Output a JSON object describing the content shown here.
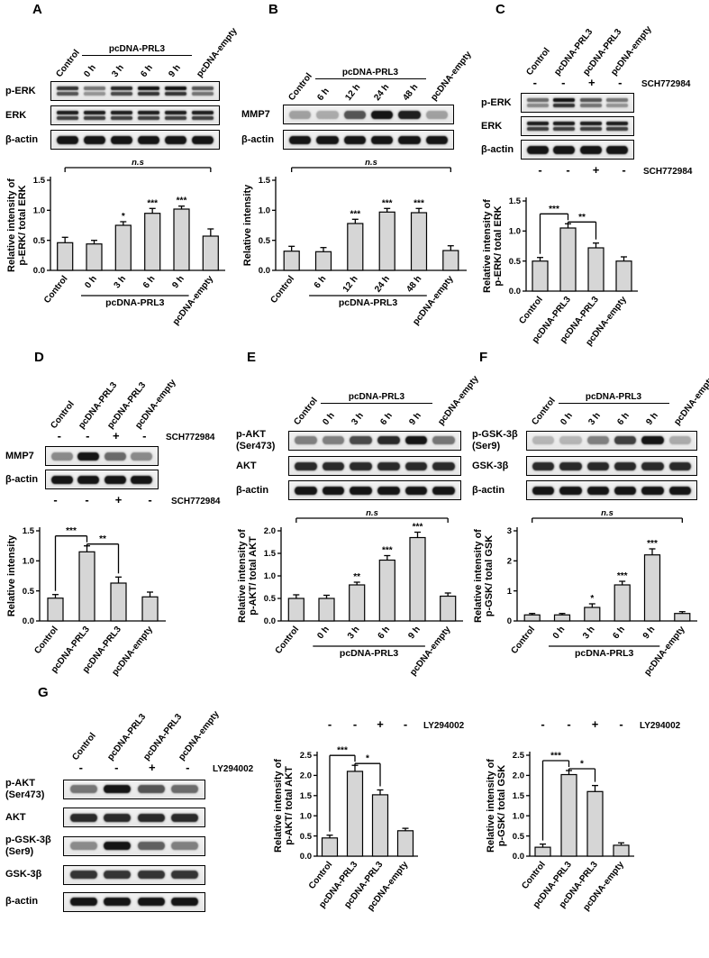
{
  "figure": {
    "background": "#ffffff",
    "text_color": "#000000",
    "bar_fill": "#d6d6d6",
    "bar_stroke": "#000000"
  },
  "panels": [
    {
      "label": "A",
      "blot": {
        "lanes": [
          "Control",
          "0 h",
          "3 h",
          "6 h",
          "9 h",
          "pcDNA-empty"
        ],
        "group": {
          "label": "pcDNA-PRL3",
          "from": 1,
          "to": 4
        },
        "treatment": null,
        "rows": [
          {
            "label_lines": [
              "p-ERK"
            ],
            "double": true,
            "bands": [
              0.85,
              0.55,
              0.9,
              1,
              1,
              0.7
            ]
          },
          {
            "label_lines": [
              "ERK"
            ],
            "double": true,
            "bands": [
              0.95,
              0.95,
              0.95,
              0.95,
              0.95,
              0.95
            ]
          },
          {
            "label_lines": [
              "β-actin"
            ],
            "double": false,
            "bands": [
              1,
              1,
              1,
              1,
              1,
              1
            ]
          }
        ]
      }
    },
    {
      "label": "B",
      "blot": {
        "lanes": [
          "Control",
          "6 h",
          "12 h",
          "24 h",
          "48 h",
          "pcDNA-empty"
        ],
        "group": {
          "label": "pcDNA-PRL3",
          "from": 1,
          "to": 4
        },
        "treatment": null,
        "rows": [
          {
            "label_lines": [
              "MMP7"
            ],
            "double": false,
            "bands": [
              0.35,
              0.3,
              0.7,
              1,
              0.95,
              0.35
            ]
          },
          {
            "label_lines": [
              "β-actin"
            ],
            "double": false,
            "bands": [
              1,
              1,
              1,
              1,
              1,
              1
            ]
          }
        ]
      }
    },
    {
      "label": "C",
      "blot": {
        "lanes": [
          "Control",
          "pcDNA-PRL3",
          "pcDNA-PRL3",
          "pcDNA-empty"
        ],
        "group": null,
        "treatment": {
          "symbols": [
            "-",
            "-",
            "+",
            "-"
          ],
          "label": "SCH772984"
        },
        "rows": [
          {
            "label_lines": [
              "p-ERK"
            ],
            "double": true,
            "bands": [
              0.6,
              1,
              0.7,
              0.55
            ]
          },
          {
            "label_lines": [
              "ERK"
            ],
            "double": true,
            "bands": [
              0.95,
              0.95,
              0.95,
              0.95
            ]
          },
          {
            "label_lines": [
              "β-actin"
            ],
            "double": false,
            "bands": [
              1,
              1,
              1,
              1
            ]
          }
        ]
      }
    },
    {
      "label": "D",
      "blot": {
        "lanes": [
          "Control",
          "pcDNA-PRL3",
          "pcDNA-PRL3",
          "pcDNA-empty"
        ],
        "group": null,
        "treatment": {
          "symbols": [
            "-",
            "-",
            "+",
            "-"
          ],
          "label": "SCH772984"
        },
        "rows": [
          {
            "label_lines": [
              "MMP7"
            ],
            "double": false,
            "bands": [
              0.45,
              1,
              0.6,
              0.45
            ]
          },
          {
            "label_lines": [
              "β-actin"
            ],
            "double": false,
            "bands": [
              1,
              1,
              1,
              1
            ]
          }
        ]
      }
    },
    {
      "label": "E",
      "blot": {
        "lanes": [
          "Control",
          "0 h",
          "3 h",
          "6 h",
          "9 h",
          "pcDNA-empty"
        ],
        "group": {
          "label": "pcDNA-PRL3",
          "from": 1,
          "to": 4
        },
        "treatment": null,
        "rows": [
          {
            "label_lines": [
              "p-AKT",
              "(Ser473)"
            ],
            "double": false,
            "bands": [
              0.5,
              0.5,
              0.75,
              0.9,
              1,
              0.55
            ]
          },
          {
            "label_lines": [
              "AKT"
            ],
            "double": false,
            "bands": [
              0.9,
              0.9,
              0.9,
              0.9,
              0.9,
              0.9
            ]
          },
          {
            "label_lines": [
              "β-actin"
            ],
            "double": false,
            "bands": [
              1,
              1,
              1,
              1,
              1,
              1
            ]
          }
        ]
      }
    },
    {
      "label": "F",
      "blot": {
        "lanes": [
          "Control",
          "0 h",
          "3 h",
          "6 h",
          "9 h",
          "pcDNA-empty"
        ],
        "group": {
          "label": "pcDNA-PRL3",
          "from": 1,
          "to": 4
        },
        "treatment": null,
        "rows": [
          {
            "label_lines": [
              "p-GSK-3β",
              "(Ser9)"
            ],
            "double": false,
            "bands": [
              0.25,
              0.25,
              0.5,
              0.8,
              1,
              0.3
            ]
          },
          {
            "label_lines": [
              "GSK-3β"
            ],
            "double": false,
            "bands": [
              0.9,
              0.9,
              0.9,
              0.9,
              0.9,
              0.9
            ]
          },
          {
            "label_lines": [
              "β-actin"
            ],
            "double": false,
            "bands": [
              1,
              1,
              1,
              1,
              1,
              1
            ]
          }
        ]
      }
    },
    {
      "label": "G",
      "blot": {
        "lanes": [
          "Control",
          "pcDNA-PRL3",
          "pcDNA-PRL3",
          "pcDNA-empty"
        ],
        "group": null,
        "treatment": {
          "symbols": [
            "-",
            "-",
            "+",
            "-"
          ],
          "label": "LY294002"
        },
        "rows": [
          {
            "label_lines": [
              "p-AKT",
              "(Ser473)"
            ],
            "double": false,
            "bands": [
              0.55,
              1,
              0.7,
              0.6
            ]
          },
          {
            "label_lines": [
              "AKT"
            ],
            "double": false,
            "bands": [
              0.9,
              0.9,
              0.9,
              0.9
            ]
          },
          {
            "label_lines": [
              "p-GSK-3β",
              "(Ser9)"
            ],
            "double": false,
            "bands": [
              0.45,
              1,
              0.65,
              0.5
            ]
          },
          {
            "label_lines": [
              "GSK-3β"
            ],
            "double": false,
            "bands": [
              0.85,
              0.85,
              0.85,
              0.85
            ]
          },
          {
            "label_lines": [
              "β-actin"
            ],
            "double": false,
            "bands": [
              1,
              1,
              1,
              1
            ]
          }
        ]
      }
    }
  ],
  "chart_data": [
    {
      "id": "A",
      "type": "bar",
      "ylabel_lines": [
        "Relative intensity of",
        "p-ERK/ total ERK"
      ],
      "categories": [
        "Control",
        "0 h",
        "3 h",
        "6 h",
        "9 h",
        "pcDNA-empty"
      ],
      "values": [
        0.46,
        0.44,
        0.75,
        0.95,
        1.02,
        0.57
      ],
      "errors": [
        0.09,
        0.06,
        0.06,
        0.08,
        0.05,
        0.12
      ],
      "stars": [
        "",
        "",
        "*",
        "***",
        "***",
        ""
      ],
      "ylim": [
        0,
        1.5
      ],
      "yticks": [
        0,
        0.5,
        1.0,
        1.5
      ],
      "ytick_labels": [
        "0.0",
        "0.5",
        "1.0",
        "1.5"
      ],
      "ns_bracket": {
        "from": 0,
        "to": 5,
        "label": "n.s"
      },
      "sig_brackets": [],
      "treatment_header": null,
      "group_underline": {
        "label": "pcDNA-PRL3",
        "from": 1,
        "to": 4
      }
    },
    {
      "id": "B",
      "type": "bar",
      "ylabel_lines": [
        "Relative intensity"
      ],
      "categories": [
        "Control",
        "6 h",
        "12 h",
        "24 h",
        "48 h",
        "pcDNA-empty"
      ],
      "values": [
        0.32,
        0.31,
        0.78,
        0.97,
        0.96,
        0.33
      ],
      "errors": [
        0.08,
        0.07,
        0.07,
        0.06,
        0.07,
        0.08
      ],
      "stars": [
        "",
        "",
        "***",
        "***",
        "***",
        ""
      ],
      "ylim": [
        0,
        1.5
      ],
      "yticks": [
        0,
        0.5,
        1.0,
        1.5
      ],
      "ytick_labels": [
        "0.0",
        "0.5",
        "1.0",
        "1.5"
      ],
      "ns_bracket": {
        "from": 0,
        "to": 5,
        "label": "n.s"
      },
      "sig_brackets": [],
      "treatment_header": null,
      "group_underline": {
        "label": "pcDNA-PRL3",
        "from": 1,
        "to": 4
      }
    },
    {
      "id": "C",
      "type": "bar",
      "ylabel_lines": [
        "Relative intensity of",
        "p-ERK/ total ERK"
      ],
      "categories": [
        "Control",
        "pcDNA-PRL3",
        "pcDNA-PRL3",
        "pcDNA-empty"
      ],
      "values": [
        0.5,
        1.05,
        0.72,
        0.5
      ],
      "errors": [
        0.06,
        0.07,
        0.08,
        0.07
      ],
      "stars": [
        "",
        "",
        "",
        ""
      ],
      "ylim": [
        0,
        1.5
      ],
      "yticks": [
        0,
        0.5,
        1.0,
        1.5
      ],
      "ytick_labels": [
        "0.0",
        "0.5",
        "1.0",
        "1.5"
      ],
      "ns_bracket": null,
      "sig_brackets": [
        {
          "from": 0,
          "to": 1,
          "label": "***"
        },
        {
          "from": 1,
          "to": 2,
          "label": "**"
        }
      ],
      "treatment_header": {
        "symbols": [
          "-",
          "-",
          "+",
          "-"
        ],
        "label": "SCH772984"
      },
      "group_underline": null
    },
    {
      "id": "D",
      "type": "bar",
      "ylabel_lines": [
        "Relative intensity"
      ],
      "categories": [
        "Control",
        "pcDNA-PRL3",
        "pcDNA-PRL3",
        "pcDNA-empty"
      ],
      "values": [
        0.38,
        1.15,
        0.63,
        0.4
      ],
      "errors": [
        0.06,
        0.1,
        0.1,
        0.08
      ],
      "stars": [
        "",
        "",
        "",
        ""
      ],
      "ylim": [
        0,
        1.5
      ],
      "yticks": [
        0,
        0.5,
        1.0,
        1.5
      ],
      "ytick_labels": [
        "0.0",
        "0.5",
        "1.0",
        "1.5"
      ],
      "ns_bracket": null,
      "sig_brackets": [
        {
          "from": 0,
          "to": 1,
          "label": "***"
        },
        {
          "from": 1,
          "to": 2,
          "label": "**"
        }
      ],
      "treatment_header": {
        "symbols": [
          "-",
          "-",
          "+",
          "-"
        ],
        "label": "SCH772984"
      },
      "group_underline": null
    },
    {
      "id": "E",
      "type": "bar",
      "ylabel_lines": [
        "Relative intensity of",
        "p-AKT/ total AKT"
      ],
      "categories": [
        "Control",
        "0 h",
        "3 h",
        "6 h",
        "9 h",
        "pcDNA-empty"
      ],
      "values": [
        0.5,
        0.5,
        0.8,
        1.35,
        1.85,
        0.55
      ],
      "errors": [
        0.08,
        0.07,
        0.06,
        0.1,
        0.12,
        0.07
      ],
      "stars": [
        "",
        "",
        "**",
        "***",
        "***",
        ""
      ],
      "ylim": [
        0,
        2.0
      ],
      "yticks": [
        0,
        0.5,
        1.0,
        1.5,
        2.0
      ],
      "ytick_labels": [
        "0.0",
        "0.5",
        "1.0",
        "1.5",
        "2.0"
      ],
      "ns_bracket": {
        "from": 0,
        "to": 5,
        "label": "n.s"
      },
      "sig_brackets": [],
      "treatment_header": null,
      "group_underline": {
        "label": "pcDNA-PRL3",
        "from": 1,
        "to": 4
      }
    },
    {
      "id": "F",
      "type": "bar",
      "ylabel_lines": [
        "Relative intensity of",
        "p-GSK/ total GSK"
      ],
      "categories": [
        "Control",
        "0 h",
        "3 h",
        "6 h",
        "9 h",
        "pcDNA-empty"
      ],
      "values": [
        0.2,
        0.2,
        0.45,
        1.2,
        2.2,
        0.25
      ],
      "errors": [
        0.05,
        0.05,
        0.12,
        0.12,
        0.2,
        0.06
      ],
      "stars": [
        "",
        "",
        "*",
        "***",
        "***",
        ""
      ],
      "ylim": [
        0,
        3
      ],
      "yticks": [
        0,
        1,
        2,
        3
      ],
      "ytick_labels": [
        "0",
        "1",
        "2",
        "3"
      ],
      "ns_bracket": {
        "from": 0,
        "to": 5,
        "label": "n.s"
      },
      "sig_brackets": [],
      "treatment_header": null,
      "group_underline": {
        "label": "pcDNA-PRL3",
        "from": 1,
        "to": 4
      }
    },
    {
      "id": "G1",
      "type": "bar",
      "ylabel_lines": [
        "Relative intensity of",
        "p-AKT/ total AKT"
      ],
      "categories": [
        "Control",
        "pcDNA-PRL3",
        "pcDNA-PRL3",
        "pcDNA-empty"
      ],
      "values": [
        0.45,
        2.1,
        1.52,
        0.63
      ],
      "errors": [
        0.07,
        0.15,
        0.12,
        0.06
      ],
      "stars": [
        "",
        "",
        "",
        ""
      ],
      "ylim": [
        0,
        2.5
      ],
      "yticks": [
        0,
        0.5,
        1.0,
        1.5,
        2.0,
        2.5
      ],
      "ytick_labels": [
        "0.0",
        "0.5",
        "1.0",
        "1.5",
        "2.0",
        "2.5"
      ],
      "ns_bracket": null,
      "sig_brackets": [
        {
          "from": 0,
          "to": 1,
          "label": "***"
        },
        {
          "from": 1,
          "to": 2,
          "label": "*"
        }
      ],
      "treatment_header": {
        "symbols": [
          "-",
          "-",
          "+",
          "-"
        ],
        "label": "LY294002"
      },
      "group_underline": null
    },
    {
      "id": "G2",
      "type": "bar",
      "ylabel_lines": [
        "Relative intensity of",
        "p-GSK/ total GSK"
      ],
      "categories": [
        "Control",
        "pcDNA-PRL3",
        "pcDNA-PRL3",
        "pcDNA-empty"
      ],
      "values": [
        0.22,
        2.02,
        1.6,
        0.27
      ],
      "errors": [
        0.08,
        0.1,
        0.15,
        0.06
      ],
      "stars": [
        "",
        "",
        "",
        ""
      ],
      "ylim": [
        0,
        2.5
      ],
      "yticks": [
        0,
        0.5,
        1.0,
        1.5,
        2.0,
        2.5
      ],
      "ytick_labels": [
        "0.0",
        "0.5",
        "1.0",
        "1.5",
        "2.0",
        "2.5"
      ],
      "ns_bracket": null,
      "sig_brackets": [
        {
          "from": 0,
          "to": 1,
          "label": "***"
        },
        {
          "from": 1,
          "to": 2,
          "label": "*"
        }
      ],
      "treatment_header": {
        "symbols": [
          "-",
          "-",
          "+",
          "-"
        ],
        "label": "LY294002"
      },
      "group_underline": null
    }
  ]
}
